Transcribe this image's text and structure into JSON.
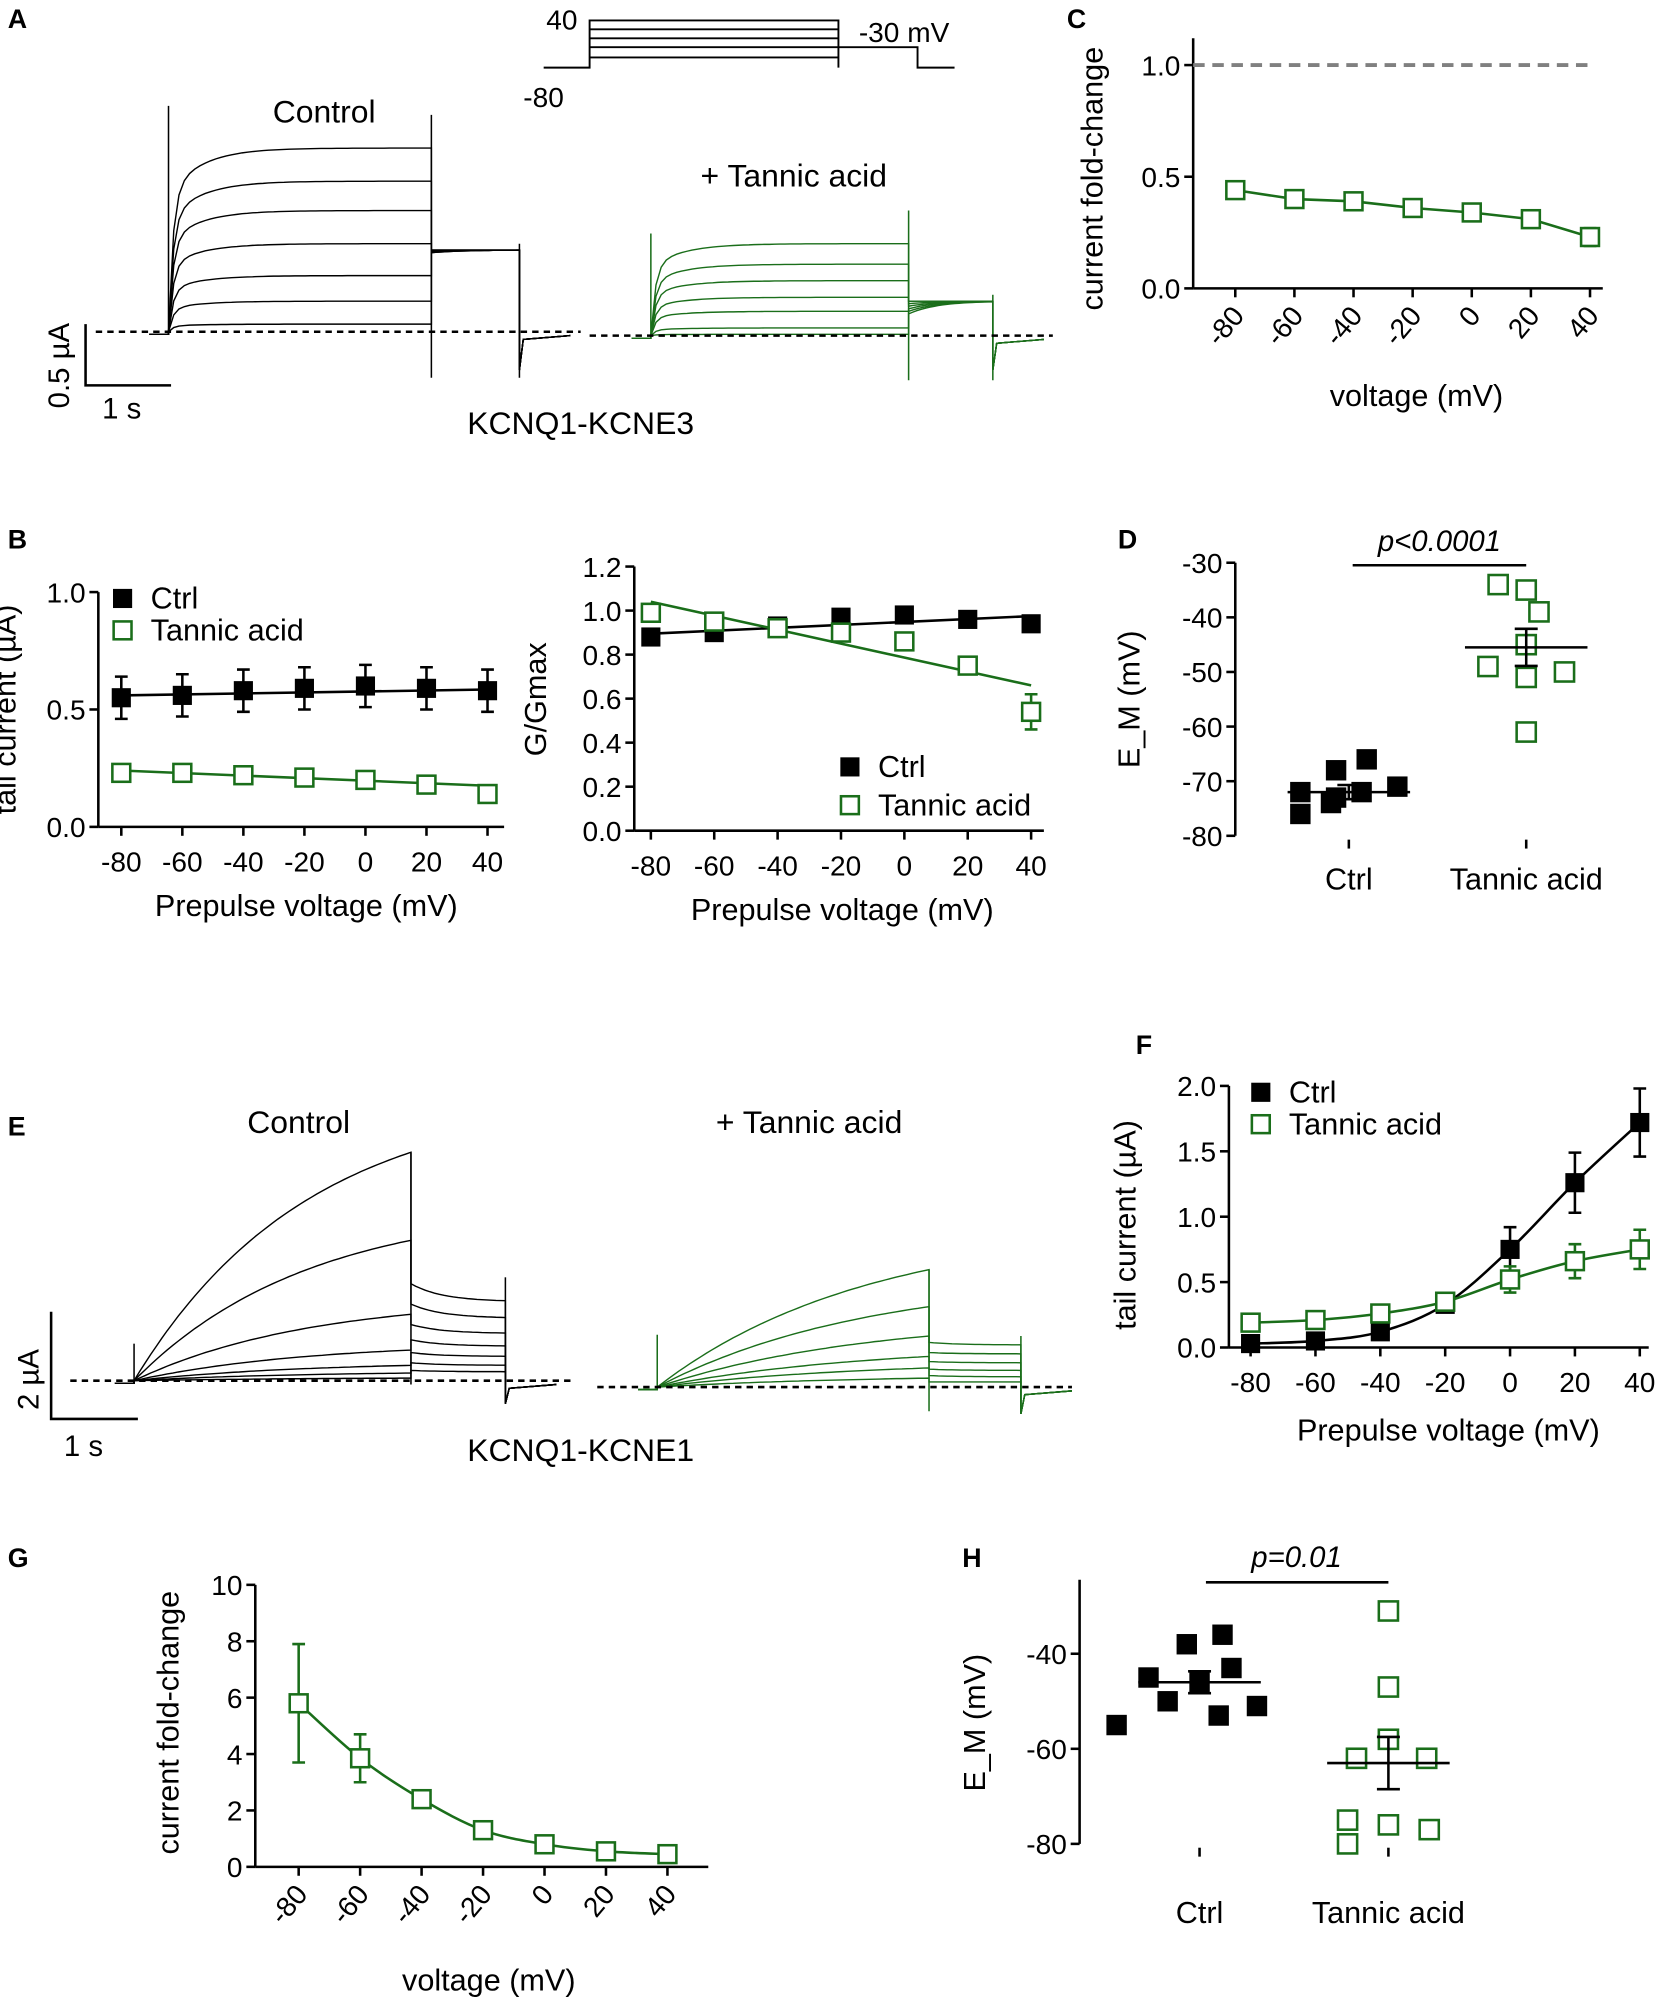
{
  "colors": {
    "ctrl": "#000000",
    "tannic": "#1a6e1a",
    "reference": "#808080"
  },
  "panel_labels": [
    "A",
    "B",
    "C",
    "D",
    "E",
    "F",
    "G",
    "H"
  ],
  "panel_a": {
    "protocol": {
      "top_label": "40",
      "bottom_label": "-80",
      "tail_label": "-30 mV"
    },
    "control_label": "Control",
    "tannic_label": "+ Tannic acid",
    "scale_y": "0.5 µA",
    "scale_x": "1 s",
    "construct": "KCNQ1-KCNE3"
  },
  "panel_e": {
    "control_label": "Control",
    "tannic_label": "+ Tannic acid",
    "scale_y": "2 µA",
    "scale_x": "1 s",
    "construct": "KCNQ1-KCNE1"
  },
  "chart_data": [
    {
      "id": "C",
      "type": "line",
      "xlabel": "voltage (mV)",
      "ylabel": "current fold-change",
      "x": [
        -80,
        -60,
        -40,
        -20,
        0,
        20,
        40
      ],
      "xtick_labels": [
        "-80",
        "-60",
        "-40",
        "-20",
        "0",
        "20",
        "40"
      ],
      "yticks": [
        0,
        0.5,
        1.0
      ],
      "ytick_labels": [
        "0.0",
        "0.5",
        "1.0"
      ],
      "ylim": [
        0,
        1.1
      ],
      "reference_line": 1.0,
      "series": [
        {
          "name": "Tannic acid",
          "values": [
            0.44,
            0.4,
            0.39,
            0.36,
            0.34,
            0.31,
            0.23
          ],
          "errors": [
            0.02,
            0.02,
            0.02,
            0.02,
            0.02,
            0.02,
            0.04
          ],
          "marker": "open-square",
          "color": "tannic"
        }
      ]
    },
    {
      "id": "B1",
      "type": "line",
      "xlabel": "Prepulse voltage (mV)",
      "ylabel": "tail current (µA)",
      "x": [
        -80,
        -60,
        -40,
        -20,
        0,
        20,
        40
      ],
      "xtick_labels": [
        "-80",
        "-60",
        "-40",
        "-20",
        "0",
        "20",
        "40"
      ],
      "yticks": [
        0,
        0.5,
        1.0
      ],
      "ytick_labels": [
        "0.0",
        "0.5",
        "1.0"
      ],
      "ylim": [
        0,
        1.0
      ],
      "legend": "top-left",
      "series": [
        {
          "name": "Ctrl",
          "values": [
            0.55,
            0.56,
            0.58,
            0.59,
            0.6,
            0.59,
            0.58
          ],
          "errors": [
            0.09,
            0.09,
            0.09,
            0.09,
            0.09,
            0.09,
            0.09
          ],
          "marker": "filled-square",
          "color": "ctrl",
          "fit": [
            0.56,
            0.585
          ]
        },
        {
          "name": "Tannic acid",
          "values": [
            0.23,
            0.23,
            0.22,
            0.21,
            0.2,
            0.18,
            0.14
          ],
          "errors": [
            0.01,
            0.01,
            0.01,
            0.01,
            0.01,
            0.01,
            0.01
          ],
          "marker": "open-square",
          "color": "tannic",
          "fit": [
            0.24,
            0.175
          ]
        }
      ]
    },
    {
      "id": "B2",
      "type": "line",
      "xlabel": "Prepulse voltage (mV)",
      "ylabel": "G/Gmax",
      "x": [
        -80,
        -60,
        -40,
        -20,
        0,
        20,
        40
      ],
      "xtick_labels": [
        "-80",
        "-60",
        "-40",
        "-20",
        "0",
        "20",
        "40"
      ],
      "yticks": [
        0,
        0.2,
        0.4,
        0.6,
        0.8,
        1.0,
        1.2
      ],
      "ytick_labels": [
        "0.0",
        "0.2",
        "0.4",
        "0.6",
        "0.8",
        "1.0",
        "1.2"
      ],
      "ylim": [
        0,
        1.2
      ],
      "legend": "bottom-right",
      "series": [
        {
          "name": "Ctrl",
          "values": [
            0.88,
            0.9,
            0.93,
            0.97,
            0.98,
            0.96,
            0.94
          ],
          "errors": [
            0.01,
            0.01,
            0.01,
            0.01,
            0.01,
            0.01,
            0.01
          ],
          "marker": "filled-square",
          "color": "ctrl",
          "fit": [
            0.895,
            0.975
          ]
        },
        {
          "name": "Tannic acid",
          "values": [
            0.99,
            0.95,
            0.92,
            0.9,
            0.86,
            0.75,
            0.54
          ],
          "errors": [
            0.01,
            0.01,
            0.01,
            0.01,
            0.02,
            0.03,
            0.08
          ],
          "marker": "open-square",
          "color": "tannic",
          "fit": [
            1.04,
            0.66
          ]
        }
      ]
    },
    {
      "id": "D",
      "type": "scatter",
      "ylabel": "E_M (mV)",
      "categories": [
        "Ctrl",
        "Tannic acid"
      ],
      "yticks": [
        -80,
        -70,
        -60,
        -50,
        -40,
        -30
      ],
      "ytick_labels": [
        "-80",
        "-70",
        "-60",
        "-50",
        "-40",
        "-30"
      ],
      "ylim": [
        -80,
        -30
      ],
      "annotation": "p<0.0001",
      "series": [
        {
          "name": "Ctrl",
          "values": [
            -76,
            -72,
            -68,
            -73,
            -72,
            -66,
            -71,
            -74
          ],
          "mean": -72,
          "sem": 1.3,
          "marker": "filled-square",
          "color": "ctrl"
        },
        {
          "name": "Tannic acid",
          "values": [
            -34,
            -35,
            -39,
            -49,
            -45,
            -51,
            -50,
            -61
          ],
          "mean": -45.5,
          "sem": 3.4,
          "marker": "open-square",
          "color": "tannic"
        }
      ]
    },
    {
      "id": "F",
      "type": "line",
      "xlabel": "Prepulse voltage (mV)",
      "ylabel": "tail current (µA)",
      "x": [
        -80,
        -60,
        -40,
        -20,
        0,
        20,
        40
      ],
      "xtick_labels": [
        "-80",
        "-60",
        "-40",
        "-20",
        "0",
        "20",
        "40"
      ],
      "yticks": [
        0,
        0.5,
        1.0,
        1.5,
        2.0
      ],
      "ytick_labels": [
        "0.0",
        "0.5",
        "1.0",
        "1.5",
        "2.0"
      ],
      "ylim": [
        0,
        2.0
      ],
      "legend": "top-left",
      "series": [
        {
          "name": "Ctrl",
          "values": [
            0.03,
            0.05,
            0.12,
            0.33,
            0.75,
            1.26,
            1.72
          ],
          "errors": [
            0.01,
            0.01,
            0.02,
            0.06,
            0.17,
            0.23,
            0.26
          ],
          "marker": "filled-square",
          "color": "ctrl",
          "curve": "sigmoid"
        },
        {
          "name": "Tannic acid",
          "values": [
            0.19,
            0.21,
            0.26,
            0.35,
            0.52,
            0.66,
            0.75
          ],
          "errors": [
            0.02,
            0.02,
            0.03,
            0.04,
            0.1,
            0.13,
            0.15
          ],
          "marker": "open-square",
          "color": "tannic",
          "curve": "sigmoid"
        }
      ]
    },
    {
      "id": "G",
      "type": "line",
      "xlabel": "voltage (mV)",
      "ylabel": "current fold-change",
      "x": [
        -80,
        -60,
        -40,
        -20,
        0,
        20,
        40
      ],
      "xtick_labels": [
        "-80",
        "-60",
        "-40",
        "-20",
        "0",
        "20",
        "40"
      ],
      "yticks": [
        0,
        2,
        4,
        6,
        8,
        10
      ],
      "ytick_labels": [
        "0",
        "2",
        "4",
        "6",
        "8",
        "10"
      ],
      "ylim": [
        0,
        10
      ],
      "series": [
        {
          "name": "Tannic acid",
          "values": [
            5.8,
            3.85,
            2.4,
            1.3,
            0.8,
            0.55,
            0.45
          ],
          "errors": [
            2.1,
            0.85,
            0.2,
            0.2,
            0.2,
            0.15,
            0.15
          ],
          "marker": "open-square",
          "color": "tannic",
          "curve": "smooth"
        }
      ]
    },
    {
      "id": "H",
      "type": "scatter",
      "ylabel": "E_M (mV)",
      "categories": [
        "Ctrl",
        "Tannic acid"
      ],
      "yticks": [
        -80,
        -60,
        -40
      ],
      "ytick_labels": [
        "-80",
        "-60",
        "-40"
      ],
      "ylim": [
        -86,
        -26
      ],
      "annotation": "p=0.01",
      "series": [
        {
          "name": "Ctrl",
          "values": [
            -55,
            -38,
            -36,
            -45,
            -50,
            -46,
            -53,
            -51,
            -43
          ],
          "mean": -46,
          "sem": 2.3,
          "marker": "filled-square",
          "color": "ctrl"
        },
        {
          "name": "Tannic acid",
          "values": [
            -31,
            -47,
            -58,
            -62,
            -62,
            -75,
            -80,
            -76,
            -77
          ],
          "mean": -63,
          "sem": 5.5,
          "marker": "open-square",
          "color": "tannic"
        }
      ]
    }
  ]
}
